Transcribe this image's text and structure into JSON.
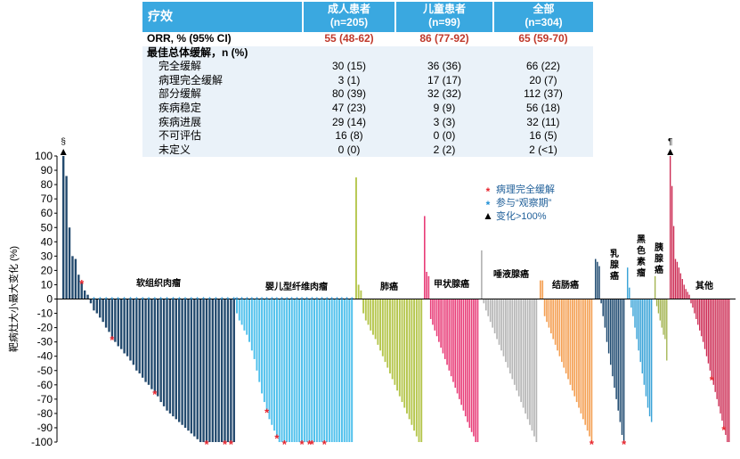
{
  "table": {
    "headers": [
      {
        "line1": "疗效",
        "line2": ""
      },
      {
        "line1": "成人患者",
        "line2": "(n=205)"
      },
      {
        "line1": "儿童患者",
        "line2": "(n=99)"
      },
      {
        "line1": "全部",
        "line2": "(n=304)"
      }
    ],
    "orr": {
      "label": "ORR, % (95% CI)",
      "adult": "55 (48-62)",
      "pediatric": "86 (77-92)",
      "all": "65 (59-70)"
    },
    "bor_label": "最佳总体缓解，n (%)",
    "rows": [
      {
        "label": "完全缓解",
        "adult": "30 (15)",
        "pediatric": "36 (36)",
        "all": "66 (22)"
      },
      {
        "label": "病理完全缓解",
        "adult": "3 (1)",
        "pediatric": "17 (17)",
        "all": "20 (7)"
      },
      {
        "label": "部分缓解",
        "adult": "80 (39)",
        "pediatric": "32 (32)",
        "all": "112 (37)"
      },
      {
        "label": "疾病稳定",
        "adult": "47 (23)",
        "pediatric": "9 (9)",
        "all": "56 (18)"
      },
      {
        "label": "疾病进展",
        "adult": "29 (14)",
        "pediatric": "3 (3)",
        "all": "32 (11)"
      },
      {
        "label": "不可评估",
        "adult": "16 (8)",
        "pediatric": "0 (0)",
        "all": "16 (5)"
      },
      {
        "label": "未定义",
        "adult": "0 (0)",
        "pediatric": "2 (2)",
        "all": "2 (<1)"
      }
    ]
  },
  "legend": [
    {
      "marker": "star",
      "color": "#e8252e",
      "label": "病理完全缓解"
    },
    {
      "marker": "star",
      "color": "#1f8fd6",
      "label": "参与“观察期”"
    },
    {
      "marker": "triangle",
      "color": "#000000",
      "label": "变化>100%"
    }
  ],
  "symbols": {
    "section": "§",
    "pilcrow": "¶"
  },
  "chart_data": {
    "type": "bar",
    "ylabel": "靶病灶大小最大变化 (%)",
    "ylim": [
      -100,
      100
    ],
    "yticks": [
      100,
      90,
      80,
      70,
      60,
      50,
      40,
      30,
      20,
      10,
      0,
      -10,
      -20,
      -30,
      -40,
      -50,
      -60,
      -70,
      -80,
      -90,
      -100
    ],
    "series": [
      {
        "name": "软组织肉瘤",
        "color": "#234a6e",
        "values": [
          100,
          86,
          50,
          30,
          28,
          17,
          12,
          6,
          3,
          -3,
          -8,
          -10,
          -13,
          -16,
          -20,
          -23,
          -27,
          -30,
          -33,
          -35,
          -38,
          -40,
          -43,
          -46,
          -50,
          -52,
          -55,
          -58,
          -60,
          -63,
          -65,
          -68,
          -72,
          -75,
          -78,
          -80,
          -82,
          -84,
          -86,
          -88,
          -90,
          -92,
          -94,
          -96,
          -98,
          -100,
          -100,
          -100,
          -100,
          -100,
          -100,
          -100,
          -100,
          -100,
          -100,
          -100,
          -100
        ]
      },
      {
        "name": "婴儿型纤维肉瘤",
        "color": "#4fc0ec",
        "values": [
          -10,
          -15,
          -18,
          -22,
          -25,
          -30,
          -36,
          -42,
          -50,
          -58,
          -66,
          -72,
          -78,
          -84,
          -88,
          -92,
          -96,
          -100,
          -100,
          -100,
          -100,
          -100,
          -100,
          -100,
          -100,
          -100,
          -100,
          -100,
          -100,
          -100,
          -100,
          -100,
          -100,
          -100,
          -100,
          -100,
          -100,
          -100,
          -100,
          -100,
          -100,
          -100,
          -100,
          -100,
          -100,
          -100,
          -100
        ]
      },
      {
        "name": "肺癌",
        "color": "#b5c64d",
        "values": [
          85,
          10,
          6,
          -10,
          -15,
          -18,
          -22,
          -25,
          -28,
          -32,
          -36,
          -40,
          -44,
          -48,
          -52,
          -56,
          -60,
          -64,
          -68,
          -72,
          -76,
          -80,
          -84,
          -88,
          -92,
          -96,
          -100,
          -100
        ]
      },
      {
        "name": "甲状腺癌",
        "color": "#e83d78",
        "values": [
          58,
          19,
          16,
          -14,
          -18,
          -22,
          -26,
          -30,
          -34,
          -38,
          -42,
          -46,
          -50,
          -54,
          -58,
          -62,
          -66,
          -70,
          -74,
          -78,
          -82,
          -86,
          -90,
          -93,
          -96,
          -100,
          -100
        ]
      },
      {
        "name": "唾液腺癌",
        "color": "#b6b6b6",
        "values": [
          34,
          -3,
          -8,
          -12,
          -16,
          -20,
          -24,
          -28,
          -32,
          -36,
          -40,
          -44,
          -48,
          -52,
          -56,
          -60,
          -64,
          -68,
          -72,
          -76,
          -80,
          -84,
          -88,
          -92,
          -96,
          -100
        ]
      },
      {
        "name": "结肠癌",
        "color": "#f4a054",
        "values": [
          13,
          13,
          -12,
          -16,
          -20,
          -24,
          -28,
          -32,
          -36,
          -40,
          -44,
          -48,
          -52,
          -56,
          -60,
          -64,
          -68,
          -72,
          -76,
          -80,
          -84,
          -88,
          -92,
          -96,
          -100
        ]
      },
      {
        "name": "乳腺癌",
        "color": "#1e4a70",
        "values": [
          28,
          26,
          23,
          -3,
          -12,
          -20,
          -30,
          -38,
          -46,
          -54,
          -62,
          -70,
          -78,
          -86,
          -95,
          -100
        ]
      },
      {
        "name": "黑色素瘤",
        "color": "#3ba4d8",
        "values": [
          22,
          8,
          -6,
          -12,
          -20,
          -28,
          -36,
          -44,
          -52,
          -60,
          -68,
          -76,
          -82,
          -86
        ]
      },
      {
        "name": "胰腺癌",
        "color": "#a0b24c",
        "values": [
          16,
          -5,
          -10,
          -15,
          -20,
          -25,
          -28,
          -43
        ]
      },
      {
        "name": "其他",
        "color": "#cc2a52",
        "values": [
          100,
          79,
          51,
          28,
          26,
          22,
          18,
          14,
          10,
          7,
          5,
          3,
          -3,
          -6,
          -10,
          -14,
          -18,
          -22,
          -26,
          -30,
          -35,
          -40,
          -45,
          -50,
          -55,
          -60,
          -65,
          -70,
          -75,
          -80,
          -85,
          -90,
          -95,
          -100,
          -100
        ]
      }
    ],
    "category_labels": [
      {
        "series": 0,
        "text": "软组织肉瘤"
      },
      {
        "series": 1,
        "text": "婴儿型纤维肉瘤"
      },
      {
        "series": 2,
        "text": "肺癌"
      },
      {
        "series": 3,
        "text": "甲状腺癌"
      },
      {
        "series": 4,
        "text": "唾液腺癌"
      },
      {
        "series": 5,
        "text": "结肠癌"
      },
      {
        "series": 6,
        "text": "乳腺癌",
        "vertical": true
      },
      {
        "series": 7,
        "text": "黑色素瘤",
        "vertical": true
      },
      {
        "series": 8,
        "text": "胰腺癌",
        "vertical": true
      },
      {
        "series": 9,
        "text": "其他"
      }
    ],
    "pcr_marks": [
      {
        "series": 0,
        "index": 6
      },
      {
        "series": 0,
        "index": 16
      },
      {
        "series": 0,
        "index": 30
      },
      {
        "series": 0,
        "index": 47
      },
      {
        "series": 0,
        "index": 53
      },
      {
        "series": 0,
        "index": 55
      },
      {
        "series": 1,
        "index": 12
      },
      {
        "series": 1,
        "index": 16
      },
      {
        "series": 1,
        "index": 19
      },
      {
        "series": 1,
        "index": 26
      },
      {
        "series": 1,
        "index": 29
      },
      {
        "series": 1,
        "index": 30
      },
      {
        "series": 1,
        "index": 35
      },
      {
        "series": 5,
        "index": 24
      },
      {
        "series": 6,
        "index": 15
      },
      {
        "series": 9,
        "index": 24
      },
      {
        "series": 9,
        "index": 31
      }
    ],
    "watch_period": [
      {
        "series": 0,
        "from": 10,
        "to": 56
      },
      {
        "series": 1,
        "from": 0,
        "to": 46
      }
    ],
    "over100": [
      {
        "series": 0,
        "index": 0
      },
      {
        "series": 9,
        "index": 0
      }
    ]
  }
}
